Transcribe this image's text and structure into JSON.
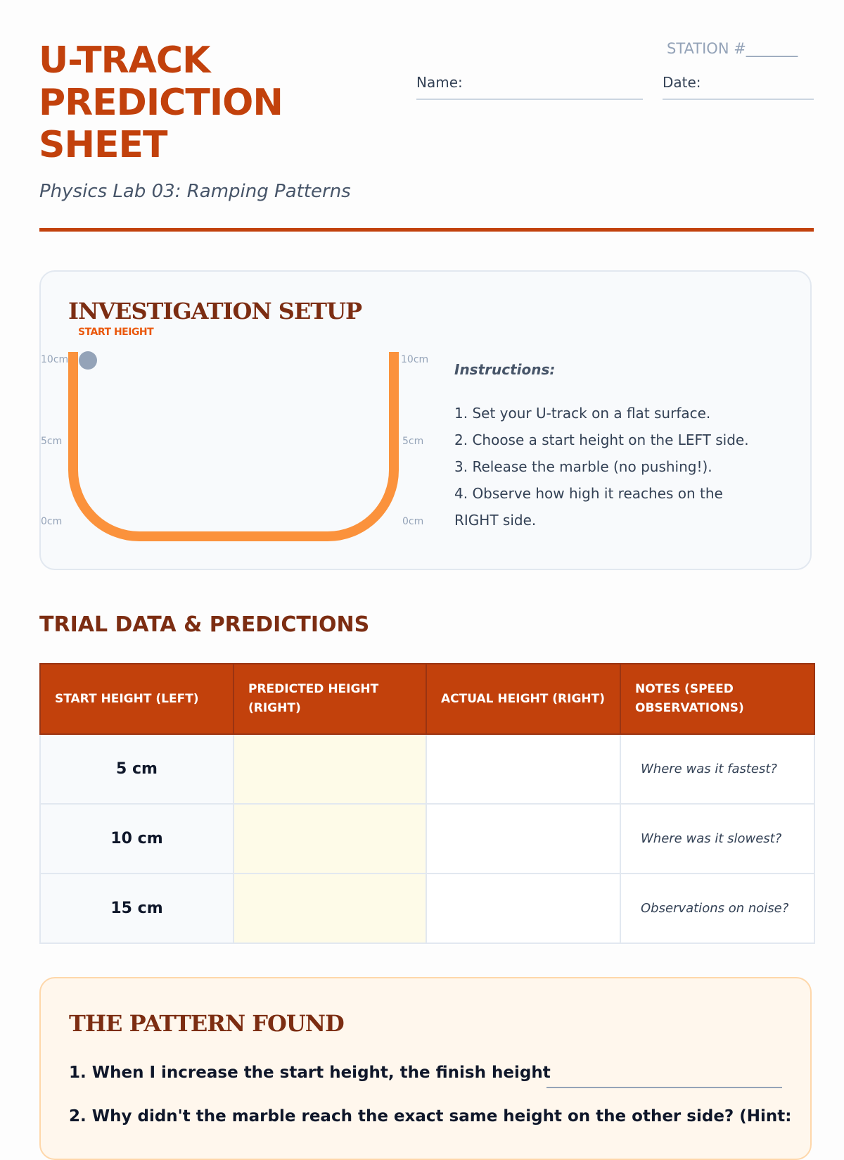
{
  "header": {
    "title_lines": [
      "U-TRACK",
      "PREDICTION",
      "SHEET"
    ],
    "subtitle": "Physics Lab 03: Ramping Patterns",
    "station_label": "STATION #_______",
    "name_label": "Name:",
    "date_label": "Date:"
  },
  "setup": {
    "heading": "INVESTIGATION SETUP",
    "start_height_label": "START HEIGHT",
    "left_ticks": [
      "10cm",
      "5cm",
      "0cm"
    ],
    "right_ticks": [
      "10cm",
      "5cm",
      "0cm"
    ],
    "instructions_heading": "Instructions:",
    "instructions": [
      "1. Set your U-track on a flat surface.",
      "2. Choose a start height on the LEFT side.",
      "3. Release the marble (no pushing!).",
      "4. Observe how high it reaches on the",
      "RIGHT side."
    ],
    "colors": {
      "track": "#fb923c",
      "marble": "#94a3b8"
    }
  },
  "trial": {
    "heading": "TRIAL DATA & PREDICTIONS",
    "columns": [
      "START HEIGHT (LEFT)",
      "PREDICTED HEIGHT (RIGHT)",
      "ACTUAL HEIGHT (RIGHT)",
      "NOTES (SPEED OBSERVATIONS)"
    ],
    "rows": [
      {
        "start": "5 cm",
        "predicted": "",
        "actual": "",
        "note": "Where was it fastest?"
      },
      {
        "start": "10 cm",
        "predicted": "",
        "actual": "",
        "note": "Where was it slowest?"
      },
      {
        "start": "15 cm",
        "predicted": "",
        "actual": "",
        "note": "Observations on noise?"
      }
    ]
  },
  "pattern": {
    "heading": "THE PATTERN FOUND",
    "q1": "1. When I increase the start height, the finish height",
    "q2": "2. Why didn't the marble reach the exact same height on the other side? (Hint:"
  },
  "colors": {
    "accent": "#c2410c",
    "heading": "#7c2d12"
  }
}
